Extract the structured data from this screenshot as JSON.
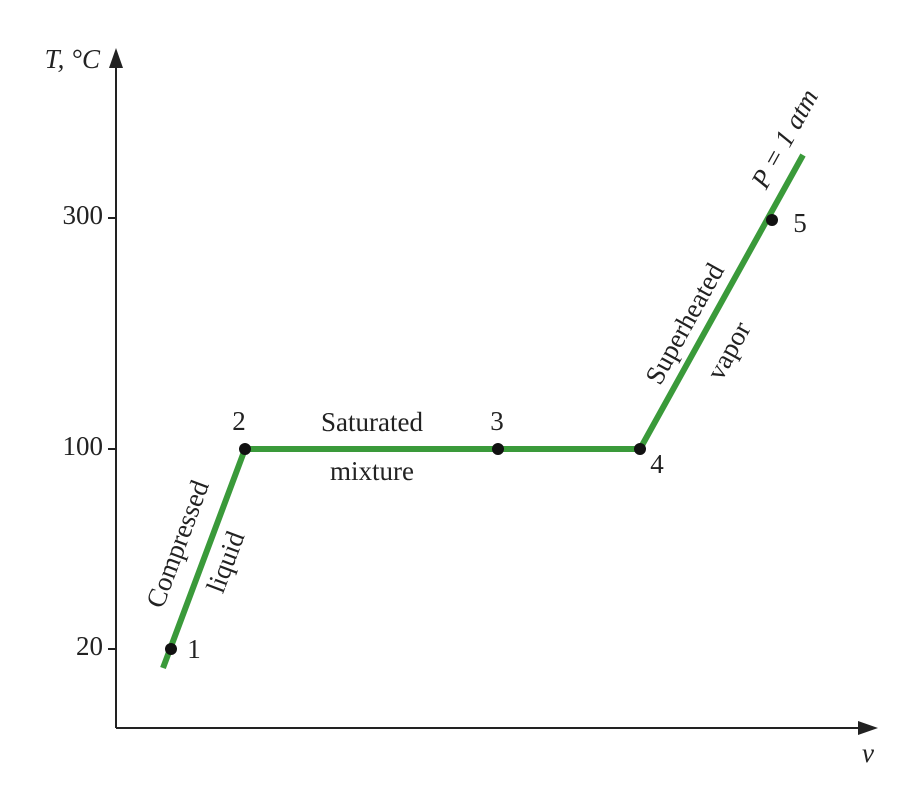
{
  "axes": {
    "y_label": "T, °C",
    "x_label": "v",
    "y_ticks": [
      "300",
      "100",
      "20"
    ]
  },
  "points": [
    "1",
    "2",
    "3",
    "4",
    "5"
  ],
  "regions": {
    "compressed": "Compressed",
    "liquid": "liquid",
    "saturated": "Saturated",
    "mixture": "mixture",
    "superheated": "Superheated",
    "vapor": "vapor"
  },
  "curve_label": "P = 1 atm"
}
